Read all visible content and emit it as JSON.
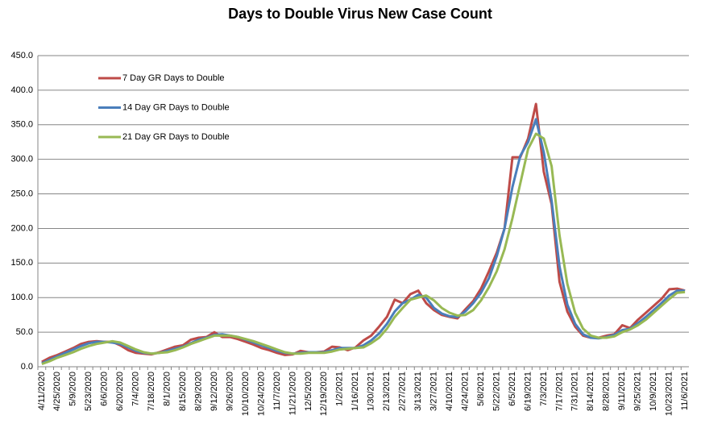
{
  "chart_data": {
    "type": "line",
    "title": "Days to Double Virus New Case Count",
    "categories": [
      "4/11/2020",
      null,
      "4/25/2020",
      null,
      "5/9/2020",
      null,
      "5/23/2020",
      null,
      "6/6/2020",
      null,
      "6/20/2020",
      null,
      "7/4/2020",
      null,
      "7/18/2020",
      null,
      "8/1/2020",
      null,
      "8/15/2020",
      null,
      "8/29/2020",
      null,
      "9/12/2020",
      null,
      "9/26/2020",
      null,
      "10/10/2020",
      null,
      "10/24/2020",
      null,
      "11/7/2020",
      null,
      "11/21/2020",
      null,
      "12/5/2020",
      null,
      "12/19/2020",
      null,
      "1/2/2021",
      null,
      "1/16/2021",
      null,
      "1/30/2021",
      null,
      "2/13/2021",
      null,
      "2/27/2021",
      null,
      "3/13/2021",
      null,
      "3/27/2021",
      null,
      "4/10/2021",
      null,
      "4/24/2021",
      null,
      "5/8/2021",
      null,
      "5/22/2021",
      null,
      "6/5/2021",
      null,
      "6/19/2021",
      null,
      "7/3/2021",
      null,
      "7/17/2021",
      null,
      "7/31/2021",
      null,
      "8/14/2021",
      null,
      "8/28/2021",
      null,
      "9/11/2021",
      null,
      "9/25/2021",
      null,
      "10/9/2021",
      null,
      "10/23/2021",
      null,
      "11/6/2021"
    ],
    "series": [
      {
        "name": "7 Day GR Days to Double",
        "color": "#be4b48",
        "values": [
          7,
          13,
          17,
          22,
          27,
          33,
          36,
          37,
          36,
          36,
          31,
          24,
          20,
          19,
          18,
          21,
          25,
          29,
          31,
          39,
          42,
          43,
          50,
          43,
          43,
          40,
          36,
          32,
          27,
          24,
          20,
          17,
          18,
          23,
          21,
          21,
          22,
          29,
          28,
          24,
          28,
          38,
          45,
          58,
          72,
          97,
          92,
          105,
          110,
          92,
          82,
          75,
          72,
          70,
          83,
          95,
          113,
          138,
          165,
          200,
          303,
          303,
          330,
          380,
          282,
          235,
          123,
          80,
          58,
          45,
          42,
          42,
          45,
          47,
          60,
          56,
          68,
          78,
          88,
          98,
          112,
          113,
          110
        ]
      },
      {
        "name": "14 Day GR Days to Double",
        "color": "#4a7ebb",
        "values": [
          5,
          10,
          15,
          20,
          25,
          30,
          34,
          36,
          36,
          35,
          33,
          28,
          23,
          20,
          19,
          20,
          23,
          26,
          29,
          34,
          39,
          42,
          46,
          47,
          45,
          43,
          39,
          35,
          31,
          27,
          23,
          20,
          19,
          20,
          21,
          21,
          21,
          24,
          27,
          27,
          27,
          31,
          38,
          48,
          62,
          80,
          92,
          97,
          104,
          100,
          85,
          77,
          73,
          72,
          80,
          92,
          107,
          128,
          160,
          200,
          260,
          305,
          325,
          358,
          310,
          240,
          145,
          90,
          62,
          47,
          42,
          41,
          43,
          46,
          53,
          55,
          63,
          72,
          82,
          92,
          103,
          110,
          110
        ]
      },
      {
        "name": "21 Day GR Days to Double",
        "color": "#98b954",
        "values": [
          4,
          8,
          13,
          17,
          21,
          26,
          30,
          33,
          35,
          37,
          35,
          30,
          25,
          21,
          19,
          20,
          21,
          24,
          28,
          33,
          37,
          41,
          45,
          45,
          45,
          43,
          40,
          37,
          33,
          29,
          25,
          21,
          19,
          19,
          20,
          20,
          20,
          22,
          25,
          26,
          27,
          28,
          34,
          42,
          55,
          72,
          85,
          97,
          100,
          103,
          96,
          85,
          78,
          74,
          75,
          82,
          96,
          115,
          138,
          170,
          215,
          265,
          315,
          337,
          330,
          290,
          190,
          120,
          78,
          55,
          45,
          42,
          42,
          44,
          50,
          54,
          60,
          68,
          78,
          88,
          98,
          107,
          108
        ]
      }
    ],
    "ylim": [
      0,
      450
    ],
    "yticks": [
      {
        "value": 0,
        "label": "0.0"
      },
      {
        "value": 50,
        "label": "50.0"
      },
      {
        "value": 100,
        "label": "100.0"
      },
      {
        "value": 150,
        "label": "150.0"
      },
      {
        "value": 200,
        "label": "200.0"
      },
      {
        "value": 250,
        "label": "250.0"
      },
      {
        "value": 300,
        "label": "300.0"
      },
      {
        "value": 350,
        "label": "350.0"
      },
      {
        "value": 400,
        "label": "400.0"
      },
      {
        "value": 450,
        "label": "450.0"
      }
    ],
    "grid": true,
    "legend": "top-left"
  }
}
